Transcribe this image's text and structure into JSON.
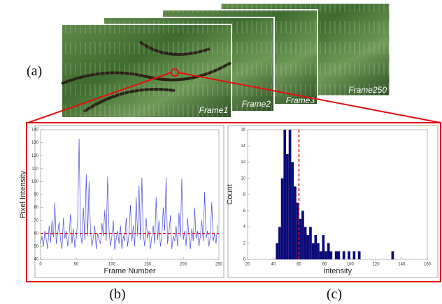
{
  "figure": {
    "panel_labels": [
      "(a)",
      "(b)",
      "(c)"
    ],
    "frames": [
      "Frame1",
      "Frame2",
      "Frame3",
      "Frame250"
    ]
  },
  "chart_data": [
    {
      "type": "line",
      "xlabel": "Frame Number",
      "ylabel": "Pixel Intensity",
      "color": "#4a4ad8",
      "x": [
        0,
        2,
        4,
        6,
        8,
        10,
        12,
        14,
        16,
        18,
        20,
        22,
        24,
        26,
        28,
        30,
        32,
        34,
        36,
        38,
        40,
        42,
        44,
        46,
        48,
        50,
        52,
        54,
        56,
        58,
        60,
        62,
        64,
        66,
        68,
        70,
        72,
        74,
        76,
        78,
        80,
        82,
        84,
        86,
        88,
        90,
        92,
        94,
        96,
        98,
        100,
        102,
        104,
        106,
        108,
        110,
        112,
        114,
        116,
        118,
        120,
        122,
        124,
        126,
        128,
        130,
        132,
        134,
        136,
        138,
        140,
        142,
        144,
        146,
        148,
        150,
        152,
        154,
        156,
        158,
        160,
        162,
        164,
        166,
        168,
        170,
        172,
        174,
        176,
        178,
        180,
        182,
        184,
        186,
        188,
        190,
        192,
        194,
        196,
        198,
        200,
        202,
        204,
        206,
        208,
        210,
        212,
        214,
        216,
        218,
        220,
        222,
        224,
        226,
        228,
        230,
        232,
        234,
        236,
        238,
        240,
        242,
        244,
        246,
        248
      ],
      "values": [
        52,
        58,
        50,
        62,
        55,
        48,
        66,
        53,
        70,
        57,
        84,
        52,
        60,
        69,
        55,
        48,
        72,
        56,
        62,
        50,
        58,
        75,
        52,
        64,
        49,
        56,
        70,
        133,
        60,
        52,
        80,
        55,
        106,
        58,
        100,
        62,
        50,
        57,
        66,
        48,
        60,
        55,
        52,
        68,
        58,
        78,
        54,
        104,
        62,
        50,
        58,
        70,
        47,
        56,
        62,
        52,
        66,
        48,
        58,
        54,
        72,
        50,
        60,
        82,
        54,
        66,
        50,
        88,
        58,
        97,
        55,
        103,
        60,
        50,
        72,
        56,
        62,
        48,
        58,
        66,
        52,
        88,
        55,
        70,
        50,
        58,
        80,
        62,
        103,
        52,
        60,
        74,
        48,
        58,
        54,
        66,
        50,
        76,
        57,
        102,
        55,
        62,
        50,
        72,
        58,
        48,
        64,
        54,
        80,
        56,
        62,
        50,
        58,
        70,
        54,
        92,
        56,
        62,
        50,
        58,
        84,
        54,
        60,
        52,
        66
      ],
      "xlim": [
        0,
        250
      ],
      "xticks": [
        0,
        50,
        100,
        150,
        200,
        250
      ],
      "ylim": [
        40,
        140
      ],
      "yticks": [
        40,
        50,
        60,
        70,
        80,
        90,
        100,
        110,
        120,
        130,
        140
      ],
      "reference_line": {
        "value": 60,
        "orientation": "horizontal",
        "color": "#e8141b"
      }
    },
    {
      "type": "histogram",
      "xlabel": "Intensity",
      "ylabel": "Count",
      "color": "#0a0a78",
      "bins": [
        40,
        42,
        44,
        46,
        48,
        50,
        52,
        54,
        56,
        58,
        60,
        62,
        64,
        66,
        68,
        70,
        72,
        74,
        76,
        78,
        80,
        82,
        84,
        86,
        88,
        90,
        92,
        94,
        96,
        98,
        100,
        102,
        104,
        106,
        108,
        110,
        112,
        114,
        116,
        118,
        120,
        122,
        124,
        126,
        128,
        130,
        132,
        134,
        136
      ],
      "counts": [
        0,
        2,
        4,
        10,
        16,
        13,
        16,
        12,
        9,
        7,
        5,
        6,
        4,
        3,
        4,
        2,
        3,
        2,
        1,
        3,
        1,
        2,
        1,
        0,
        1,
        1,
        0,
        1,
        0,
        1,
        0,
        1,
        0,
        1,
        0,
        0,
        0,
        0,
        0,
        0,
        0,
        0,
        0,
        0,
        0,
        0,
        1,
        0
      ],
      "xlim": [
        20,
        160
      ],
      "xticks": [
        20,
        40,
        60,
        80,
        100,
        120,
        140,
        160
      ],
      "ylim": [
        0,
        16
      ],
      "yticks": [
        0,
        2,
        4,
        6,
        8,
        10,
        12,
        14,
        16
      ],
      "reference_line": {
        "value": 60,
        "orientation": "vertical",
        "color": "#e8141b"
      }
    }
  ]
}
